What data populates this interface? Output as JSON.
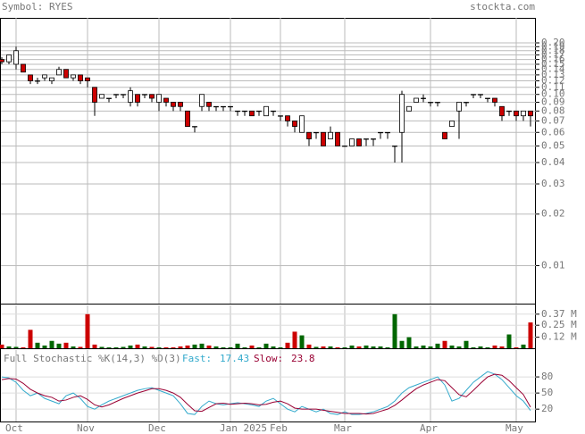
{
  "header": {
    "symbol": "Symbol: RYES",
    "site": "stockta.com"
  },
  "chart_data": [
    {
      "type": "candlestick",
      "log_scale": true,
      "grid": true,
      "up_color": "#ffffff",
      "down_color": "#cc0000",
      "xlim": [
        0,
        74
      ],
      "ylim": [
        0.006,
        0.28
      ],
      "yticks": [
        {
          "value": 0.2,
          "label": "0.20"
        },
        0.19,
        0.18,
        0.17,
        0.16,
        0.15,
        0.14,
        0.13,
        0.12,
        0.11,
        {
          "value": 0.1,
          "label": "0.10"
        },
        0.09,
        0.08,
        0.07,
        0.06,
        0.05,
        0.04,
        0.03,
        0.02,
        0.01
      ],
      "open": [
        0.16,
        0.155,
        0.15,
        0.15,
        0.13,
        0.12,
        0.125,
        0.12,
        0.13,
        0.14,
        0.125,
        0.13,
        0.125,
        0.11,
        0.095,
        0.095,
        0.1,
        0.1,
        0.09,
        0.1,
        0.1,
        0.1,
        0.09,
        0.095,
        0.09,
        0.09,
        0.08,
        0.065,
        0.085,
        0.09,
        0.085,
        0.085,
        0.085,
        0.08,
        0.08,
        0.08,
        0.08,
        0.075,
        0.08,
        0.075,
        0.075,
        0.07,
        0.06,
        0.06,
        0.06,
        0.06,
        0.055,
        0.06,
        0.05,
        0.05,
        0.055,
        0.055,
        0.055,
        0.06,
        0.06,
        0.05,
        0.06,
        0.08,
        0.09,
        0.095,
        0.09,
        0.09,
        0.06,
        0.065,
        0.08,
        0.09,
        0.1,
        0.1,
        0.095,
        0.095,
        0.085,
        0.08,
        0.08,
        0.075,
        0.08
      ],
      "high": [
        0.165,
        0.17,
        0.19,
        0.15,
        0.13,
        0.125,
        0.13,
        0.125,
        0.145,
        0.14,
        0.13,
        0.13,
        0.125,
        0.11,
        0.1,
        0.095,
        0.1,
        0.1,
        0.11,
        0.1,
        0.1,
        0.1,
        0.1,
        0.095,
        0.09,
        0.09,
        0.08,
        0.065,
        0.1,
        0.09,
        0.085,
        0.085,
        0.085,
        0.08,
        0.08,
        0.08,
        0.08,
        0.085,
        0.08,
        0.075,
        0.075,
        0.07,
        0.075,
        0.06,
        0.06,
        0.06,
        0.065,
        0.06,
        0.05,
        0.055,
        0.055,
        0.055,
        0.055,
        0.06,
        0.06,
        0.05,
        0.105,
        0.085,
        0.095,
        0.1,
        0.09,
        0.09,
        0.06,
        0.07,
        0.09,
        0.09,
        0.1,
        0.1,
        0.095,
        0.095,
        0.085,
        0.08,
        0.08,
        0.08,
        0.08
      ],
      "low": [
        0.15,
        0.15,
        0.14,
        0.135,
        0.115,
        0.115,
        0.12,
        0.115,
        0.13,
        0.125,
        0.12,
        0.115,
        0.11,
        0.075,
        0.095,
        0.09,
        0.095,
        0.095,
        0.085,
        0.085,
        0.095,
        0.09,
        0.08,
        0.085,
        0.08,
        0.08,
        0.065,
        0.06,
        0.08,
        0.08,
        0.08,
        0.08,
        0.08,
        0.075,
        0.075,
        0.075,
        0.075,
        0.075,
        0.075,
        0.07,
        0.065,
        0.06,
        0.06,
        0.05,
        0.055,
        0.05,
        0.055,
        0.05,
        0.05,
        0.05,
        0.05,
        0.05,
        0.05,
        0.055,
        0.055,
        0.04,
        0.04,
        0.08,
        0.09,
        0.09,
        0.085,
        0.085,
        0.055,
        0.065,
        0.055,
        0.085,
        0.095,
        0.095,
        0.09,
        0.085,
        0.07,
        0.075,
        0.07,
        0.07,
        0.065
      ],
      "close": [
        0.155,
        0.17,
        0.18,
        0.135,
        0.12,
        0.12,
        0.13,
        0.125,
        0.14,
        0.125,
        0.13,
        0.12,
        0.12,
        0.09,
        0.1,
        0.095,
        0.1,
        0.1,
        0.105,
        0.09,
        0.1,
        0.095,
        0.1,
        0.09,
        0.085,
        0.085,
        0.065,
        0.065,
        0.1,
        0.085,
        0.085,
        0.085,
        0.085,
        0.08,
        0.08,
        0.075,
        0.08,
        0.085,
        0.08,
        0.075,
        0.07,
        0.065,
        0.075,
        0.055,
        0.06,
        0.05,
        0.06,
        0.05,
        0.05,
        0.055,
        0.05,
        0.055,
        0.055,
        0.06,
        0.06,
        0.05,
        0.1,
        0.085,
        0.095,
        0.095,
        0.09,
        0.09,
        0.055,
        0.07,
        0.09,
        0.09,
        0.1,
        0.1,
        0.095,
        0.09,
        0.075,
        0.08,
        0.075,
        0.08,
        0.075
      ]
    },
    {
      "type": "bar",
      "up_color": "#006600",
      "down_color": "#cc0000",
      "xlim": [
        0,
        74
      ],
      "ylim": [
        0,
        465000
      ],
      "yticks": [
        {
          "value": 370000,
          "label": "0.37 M"
        },
        {
          "value": 250000,
          "label": "0.25 M"
        },
        {
          "value": 120000,
          "label": "0.12 M"
        }
      ],
      "values": [
        40000,
        20000,
        15000,
        10000,
        200000,
        60000,
        30000,
        80000,
        50000,
        60000,
        20000,
        15000,
        370000,
        40000,
        15000,
        10000,
        10000,
        15000,
        30000,
        40000,
        20000,
        15000,
        10000,
        10000,
        10000,
        20000,
        30000,
        40000,
        50000,
        30000,
        20000,
        10000,
        10000,
        50000,
        10000,
        30000,
        10000,
        50000,
        20000,
        10000,
        60000,
        180000,
        140000,
        40000,
        15000,
        20000,
        20000,
        10000,
        10000,
        30000,
        20000,
        30000,
        20000,
        20000,
        10000,
        370000,
        80000,
        120000,
        20000,
        30000,
        20000,
        50000,
        80000,
        30000,
        20000,
        80000,
        10000,
        20000,
        10000,
        30000,
        20000,
        150000,
        10000,
        40000,
        280000
      ]
    },
    {
      "type": "line",
      "title": "Full Stochastic %K(14,3) %D(3)",
      "xlim": [
        0,
        74
      ],
      "ylim": [
        -3,
        130
      ],
      "yticks": [
        80,
        50,
        20
      ],
      "xticks": [
        {
          "value": 2,
          "label": "Oct"
        },
        {
          "value": 12,
          "label": "Nov"
        },
        {
          "value": 22,
          "label": "Dec"
        },
        {
          "value": 32,
          "label": "Jan 2025"
        },
        {
          "value": 39,
          "label": "Feb"
        },
        {
          "value": 48,
          "label": "Mar"
        },
        {
          "value": 60,
          "label": "Apr"
        },
        {
          "value": 72,
          "label": "May"
        }
      ],
      "series": [
        {
          "name": "Fast:",
          "color": "#33aacc",
          "values": [
            80,
            78,
            70,
            55,
            45,
            50,
            40,
            35,
            30,
            45,
            50,
            40,
            25,
            20,
            28,
            35,
            40,
            45,
            50,
            55,
            58,
            60,
            55,
            50,
            45,
            30,
            12,
            10,
            25,
            35,
            30,
            28,
            30,
            32,
            30,
            28,
            25,
            35,
            40,
            30,
            20,
            15,
            25,
            20,
            15,
            20,
            12,
            10,
            15,
            10,
            10,
            12,
            15,
            20,
            25,
            35,
            50,
            60,
            65,
            70,
            75,
            80,
            65,
            35,
            40,
            55,
            70,
            80,
            90,
            85,
            75,
            60,
            45,
            35,
            17.43
          ]
        },
        {
          "name": "Slow:",
          "color": "#990033",
          "values": [
            75,
            77,
            76,
            68,
            57,
            50,
            45,
            42,
            35,
            37,
            42,
            45,
            38,
            28,
            24,
            28,
            34,
            40,
            45,
            50,
            54,
            58,
            58,
            55,
            50,
            42,
            29,
            17,
            16,
            23,
            30,
            31,
            29,
            30,
            31,
            30,
            28,
            29,
            33,
            35,
            30,
            22,
            20,
            20,
            20,
            18,
            16,
            14,
            12,
            12,
            12,
            11,
            12,
            16,
            20,
            27,
            37,
            48,
            58,
            65,
            70,
            75,
            73,
            60,
            47,
            43,
            55,
            68,
            80,
            85,
            83,
            73,
            60,
            47,
            23.8
          ]
        }
      ]
    }
  ]
}
